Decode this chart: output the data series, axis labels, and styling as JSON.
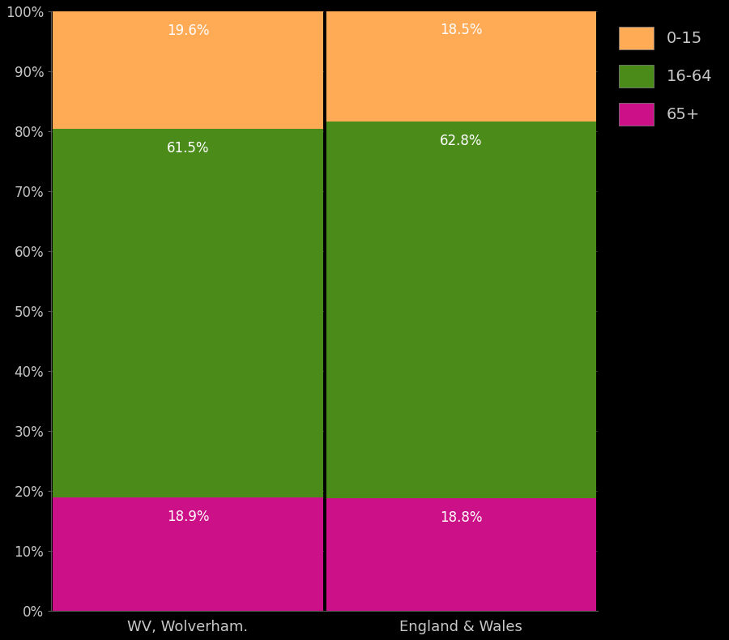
{
  "categories": [
    "WV, Wolverham.",
    "England & Wales"
  ],
  "segments": {
    "65+": [
      18.9,
      18.8
    ],
    "16-64": [
      61.5,
      62.8
    ],
    "0-15": [
      19.6,
      18.5
    ]
  },
  "colors": {
    "0-15": "#FFAA55",
    "16-64": "#4A8B1A",
    "65+": "#CC1188"
  },
  "background_color": "#000000",
  "text_color": "#C8C8C8",
  "bar_edge_color": "#000000",
  "yticks": [
    0,
    10,
    20,
    30,
    40,
    50,
    60,
    70,
    80,
    90,
    100
  ],
  "ytick_labels": [
    "0%",
    "10%",
    "20%",
    "30%",
    "40%",
    "50%",
    "60%",
    "70%",
    "80%",
    "90%",
    "100%"
  ],
  "figsize": [
    9.0,
    7.9
  ],
  "dpi": 100,
  "bar_width": 0.99,
  "label_y_offsets": {
    "0-15": -1.5,
    "16-64": 2.0,
    "65+": 1.2
  }
}
